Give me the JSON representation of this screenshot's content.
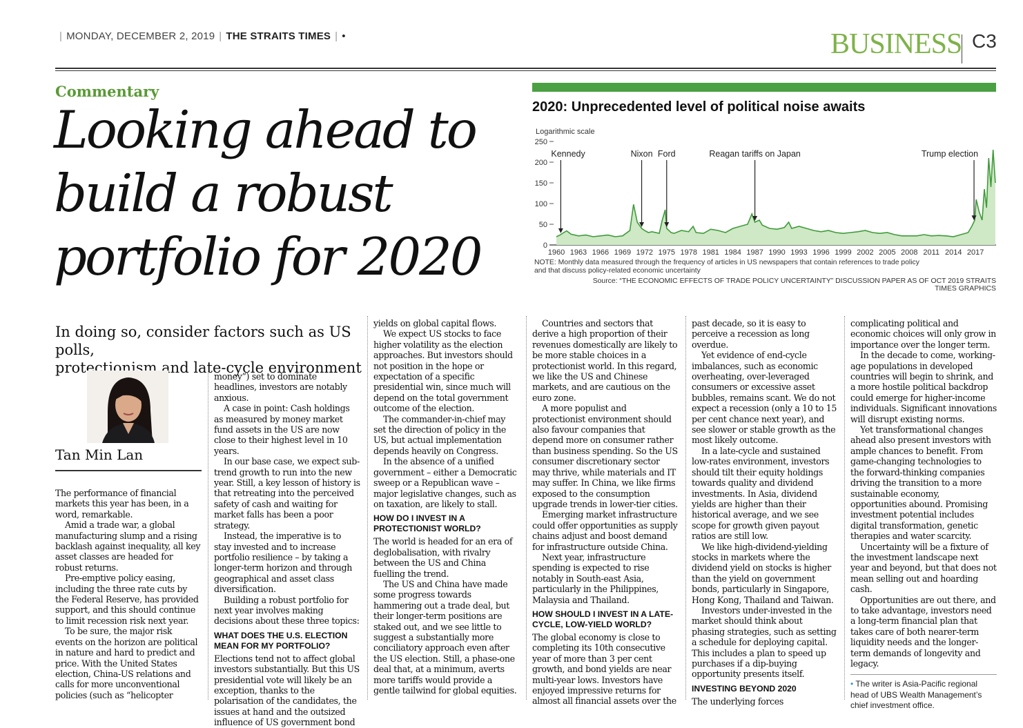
{
  "masthead": {
    "date": "MONDAY, DECEMBER 2, 2019",
    "paper": "THE STRAITS TIMES",
    "section": "BUSINESS",
    "page": "C3"
  },
  "article": {
    "kicker": "Commentary",
    "headline_lines": [
      "Looking ahead to",
      "build a robust",
      "portfolio for 2020"
    ],
    "deck_lines": [
      "In doing so, consider factors such as US polls,",
      "protectionism and late-cycle environment"
    ],
    "author": "Tan Min Lan",
    "col1": [
      "The performance of financial markets this year has been, in a word, remarkable.",
      "Amid a trade war, a global manufacturing slump and a rising backlash against inequality, all key asset classes are headed for robust returns.",
      "Pre-emptive policy easing, including the three rate cuts by the Federal Reserve, has provided support, and this should continue to limit recession risk next year.",
      "To be sure, the major risk events on the horizon are political in nature and hard to predict and price. With the United States election, China-US relations and calls for more unconventional policies (such as “helicopter"
    ],
    "col2": {
      "continued": "money”) set to dominate headlines, investors are notably anxious.",
      "paras": [
        "A case in point: Cash holdings as measured by money market fund assets in the US are now close to their highest level in 10 years.",
        "In our base case, we expect sub-trend growth to run into the new year. Still, a key lesson of history is that retreating into the perceived safety of cash and waiting for market falls has been a poor strategy.",
        "Instead, the imperative is to stay invested and to increase portfolio resilience – by taking a longer-term horizon and through geographical and asset class diversification.",
        "Building a robust portfolio for next year involves making decisions about these three topics:"
      ],
      "heading": "WHAT DOES THE U.S. ELECTION MEAN FOR MY PORTFOLIO?",
      "after_heading": "Elections tend not to affect global investors substantially. But this US presidential vote will likely be an exception, thanks to the polarisation of the candidates, the issues at hand and the outsized influence of US government bond"
    },
    "col3": {
      "continued": "yields on global capital flows.",
      "paras": [
        "We expect US stocks to face higher volatility as the election approaches. But investors should not position in the hope or expectation of a specific presidential win, since much will depend on the total government outcome of the election.",
        "The commander-in-chief may set the direction of policy in the US, but actual implementation depends heavily on Congress.",
        "In the absence of a unified government – either a Democratic sweep or a Republican wave – major legislative changes, such as on taxation, are likely to stall."
      ],
      "heading": "HOW DO I INVEST IN A PROTECTIONIST WORLD?",
      "after_heading": "The world is headed for an era of deglobalisation, with rivalry between the US and China fuelling the trend.",
      "after_paras": [
        "The US and China have made some progress towards hammering out a trade deal, but their longer-term positions are staked out, and we see little to suggest a substantially more conciliatory approach even after the US election. Still, a phase-one deal that, at a minimum, averts more tariffs would provide a gentle tailwind for global equities."
      ]
    },
    "col4": {
      "paras": [
        "Countries and sectors that derive a high proportion of their revenues domestically are likely to be more stable choices in a protectionist world. In this regard, we like the US and Chinese markets, and are cautious on the euro zone.",
        "A more populist and protectionist environment should also favour companies that depend more on consumer rather than business spending. So the US consumer discretionary sector may thrive, while materials and IT may suffer. In China, we like firms exposed to the consumption upgrade trends in lower-tier cities.",
        "Emerging market infrastructure could offer opportunities as supply chains adjust and boost demand for infrastructure outside China.",
        "Next year, infrastructure spending is expected to rise notably in South-east Asia, particularly in the Philippines, Malaysia and Thailand."
      ],
      "heading": "HOW SHOULD I INVEST IN A LATE-CYCLE, LOW-YIELD WORLD?",
      "after_heading": "The global economy is close to completing its 10th consecutive year of more than 3 per cent growth, and bond yields are near multi-year lows. Investors have enjoyed impressive returns for almost all financial assets over the"
    },
    "col5": {
      "continued": "past decade, so it is easy to perceive a recession as long overdue.",
      "paras": [
        "Yet evidence of end-cycle imbalances, such as economic overheating, over-leveraged consumers or excessive asset bubbles, remains scant. We do not expect a recession (only a 10 to 15 per cent chance next year), and see slower or stable growth as the most likely outcome.",
        "In a late-cycle and sustained low-rates environment, investors should tilt their equity holdings towards quality and dividend investments. In Asia, dividend yields are higher than their historical average, and we see scope for growth given payout ratios are still low.",
        "We like high-dividend-yielding stocks in markets where the dividend yield on stocks is higher than the yield on government bonds, particularly in Singapore, Hong Kong, Thailand and Taiwan.",
        "Investors under-invested in the market should think about phasing strategies, such as setting a schedule for deploying capital. This includes a plan to speed up purchases if a dip-buying opportunity presents itself."
      ],
      "heading": "INVESTING BEYOND 2020",
      "after_heading": "The underlying forces"
    },
    "col6": {
      "continued": "complicating political and economic choices will only grow in importance over the longer term.",
      "paras": [
        "In the decade to come, working-age populations in developed countries will begin to shrink, and a more hostile political backdrop could emerge for higher-income individuals. Significant innovations will disrupt existing norms.",
        "Yet transformational changes ahead also present investors with ample chances to benefit. From game-changing technologies to the forward-thinking companies driving the transition to a more sustainable economy, opportunities abound. Promising investment potential includes digital transformation, genetic therapies and water scarcity.",
        "Uncertainty will be a fixture of the investment landscape next year and beyond, but that does not mean selling out and hoarding cash.",
        "Opportunities are out there, and to take advantage, investors need a long-term financial plan that takes care of both nearer-term liquidity needs and the longer-term demands of longevity and legacy."
      ],
      "note_bullet": "•",
      "note": "The writer is Asia-Pacific regional head of UBS Wealth Management’s chief investment office."
    }
  },
  "chart_data": {
    "type": "area",
    "title": "2020: Unprecedented level of political noise awaits",
    "scale_label": "Logarithmic scale",
    "ylim": [
      0,
      250
    ],
    "yticks": [
      0,
      50,
      100,
      150,
      200,
      250
    ],
    "xticks": [
      "1960",
      "1963",
      "1966",
      "1969",
      "1972",
      "1975",
      "1978",
      "1981",
      "1984",
      "1987",
      "1990",
      "1993",
      "1996",
      "1999",
      "2002",
      "2005",
      "2008",
      "2011",
      "2014",
      "2017"
    ],
    "xlim": [
      1960,
      2019.8
    ],
    "series": [
      {
        "x": [
          1960,
          1960.5,
          1961,
          1961.4,
          1962,
          1963,
          1964,
          1965,
          1966,
          1967,
          1968,
          1969,
          1970,
          1970.5,
          1971,
          1971.6,
          1972,
          1972.5,
          1973,
          1974,
          1974.4,
          1974.8,
          1975,
          1975.6,
          1976,
          1977,
          1978,
          1978.6,
          1979,
          1980,
          1981,
          1982,
          1983,
          1984,
          1985,
          1986,
          1986.6,
          1987,
          1987.6,
          1988,
          1989,
          1990,
          1991,
          1991.6,
          1992,
          1993,
          1994,
          1995,
          1996,
          1997,
          1998,
          1999,
          2000,
          2001,
          2002,
          2003,
          2004,
          2005,
          2006,
          2007,
          2008,
          2009,
          2010,
          2011,
          2012,
          2013,
          2014,
          2015,
          2016,
          2016.5,
          2016.9,
          2017.1,
          2017.5,
          2017.9,
          2018.2,
          2018.5,
          2018.8,
          2019.1,
          2019.4,
          2019.7
        ],
        "values": [
          20,
          24,
          30,
          34,
          26,
          22,
          24,
          20,
          22,
          24,
          20,
          22,
          35,
          98,
          55,
          40,
          35,
          30,
          32,
          28,
          60,
          85,
          40,
          30,
          28,
          35,
          32,
          45,
          30,
          28,
          38,
          35,
          30,
          40,
          45,
          50,
          75,
          55,
          60,
          48,
          40,
          38,
          42,
          55,
          40,
          45,
          40,
          35,
          32,
          35,
          30,
          28,
          30,
          32,
          35,
          30,
          28,
          30,
          25,
          22,
          22,
          22,
          25,
          22,
          23,
          22,
          20,
          25,
          30,
          45,
          60,
          110,
          80,
          60,
          135,
          90,
          210,
          140,
          230,
          150
        ]
      }
    ],
    "annotations": [
      {
        "label": "Kennedy",
        "x": 1960.6
      },
      {
        "label": "Nixon",
        "x": 1971.6
      },
      {
        "label": "Ford",
        "x": 1975.0
      },
      {
        "label": "Reagan tariffs on Japan",
        "x": 1987.0
      },
      {
        "label": "Trump election",
        "x": 2016.8
      }
    ],
    "grid": false,
    "fill_color": "#cfe8c6",
    "line_color": "#3f9b3a",
    "note_lines": [
      "NOTE: Monthly data measured through the frequency of articles in US newspapers that contain references to trade policy",
      "and that discuss policy-related economic uncertainty"
    ],
    "source": "Source: “THE ECONOMIC EFFECTS OF TRADE POLICY UNCERTAINTY” DISCUSSION PAPER AS OF OCT 2019   STRAITS TIMES GRAPHICS"
  }
}
